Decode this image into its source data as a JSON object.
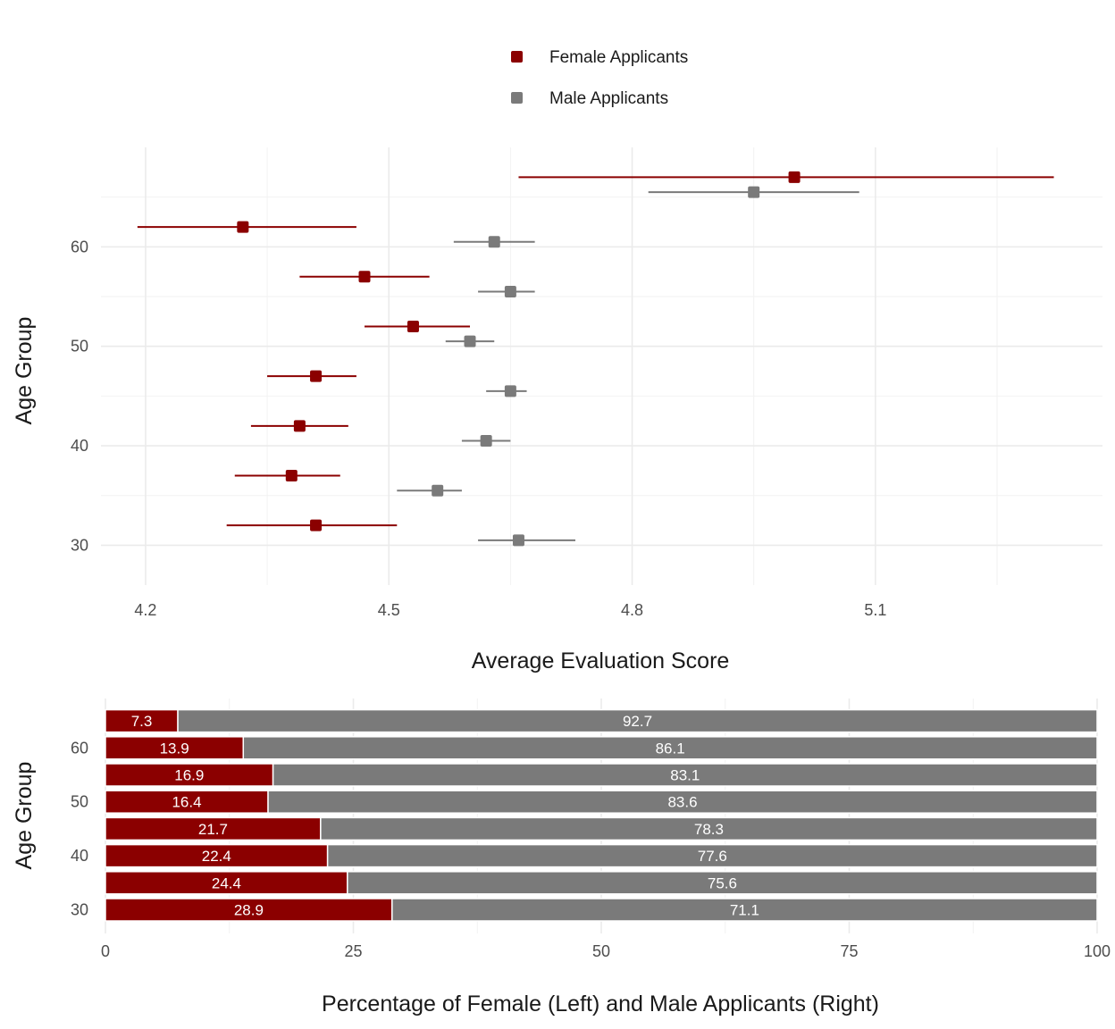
{
  "chart_data": [
    {
      "type": "scatter",
      "subtype": "point-range",
      "xlabel": "Average Evaluation Score",
      "ylabel": "Age Group",
      "xlim": [
        4.145,
        5.38
      ],
      "ylim": [
        26,
        70
      ],
      "x_ticks": [
        "4.2",
        "4.5",
        "4.8",
        "5.1"
      ],
      "y_ticks": [
        "30",
        "40",
        "50",
        "60"
      ],
      "grid": true,
      "legend_position": "top",
      "series": [
        {
          "name": "Female Applicants",
          "color": "#8b0000",
          "points": [
            {
              "age": 30,
              "mean": 4.41,
              "low": 4.3,
              "high": 4.51
            },
            {
              "age": 35,
              "mean": 4.38,
              "low": 4.31,
              "high": 4.44
            },
            {
              "age": 40,
              "mean": 4.39,
              "low": 4.33,
              "high": 4.45
            },
            {
              "age": 45,
              "mean": 4.41,
              "low": 4.35,
              "high": 4.46
            },
            {
              "age": 50,
              "mean": 4.53,
              "low": 4.47,
              "high": 4.6
            },
            {
              "age": 55,
              "mean": 4.47,
              "low": 4.39,
              "high": 4.55
            },
            {
              "age": 60,
              "mean": 4.32,
              "low": 4.19,
              "high": 4.46
            },
            {
              "age": 65,
              "mean": 5.0,
              "low": 4.66,
              "high": 5.32
            }
          ]
        },
        {
          "name": "Male Applicants",
          "color": "#7a7a7a",
          "points": [
            {
              "age": 30,
              "mean": 4.66,
              "low": 4.61,
              "high": 4.73
            },
            {
              "age": 35,
              "mean": 4.56,
              "low": 4.51,
              "high": 4.59
            },
            {
              "age": 40,
              "mean": 4.62,
              "low": 4.59,
              "high": 4.65
            },
            {
              "age": 45,
              "mean": 4.65,
              "low": 4.62,
              "high": 4.67
            },
            {
              "age": 50,
              "mean": 4.6,
              "low": 4.57,
              "high": 4.63
            },
            {
              "age": 55,
              "mean": 4.65,
              "low": 4.61,
              "high": 4.68
            },
            {
              "age": 60,
              "mean": 4.63,
              "low": 4.58,
              "high": 4.68
            },
            {
              "age": 65,
              "mean": 4.95,
              "low": 4.82,
              "high": 5.08
            }
          ]
        }
      ]
    },
    {
      "type": "bar",
      "orientation": "horizontal",
      "stacked": true,
      "xlabel": "Percentage of Female (Left) and Male Applicants (Right)",
      "ylabel": "Age Group",
      "xlim": [
        0,
        100
      ],
      "x_ticks": [
        "0",
        "25",
        "50",
        "75",
        "100"
      ],
      "y_ticks": [
        "30",
        "40",
        "50",
        "60"
      ],
      "grid": true,
      "categories": [
        "30",
        "35",
        "40",
        "45",
        "50",
        "55",
        "60",
        "65"
      ],
      "series": [
        {
          "name": "Female Applicants",
          "color": "#8b0000",
          "values": [
            28.9,
            24.4,
            22.4,
            21.7,
            16.4,
            16.9,
            13.9,
            7.3
          ],
          "labels": [
            "28.9",
            "24.4",
            "22.4",
            "21.7",
            "16.4",
            "16.9",
            "13.9",
            "7.3"
          ]
        },
        {
          "name": "Male Applicants",
          "color": "#7a7a7a",
          "values": [
            71.1,
            75.6,
            77.6,
            78.3,
            83.6,
            83.1,
            86.1,
            92.7
          ],
          "labels": [
            "71.1",
            "75.6",
            "77.6",
            "78.3",
            "83.6",
            "83.1",
            "86.1",
            "92.7"
          ]
        }
      ]
    }
  ]
}
